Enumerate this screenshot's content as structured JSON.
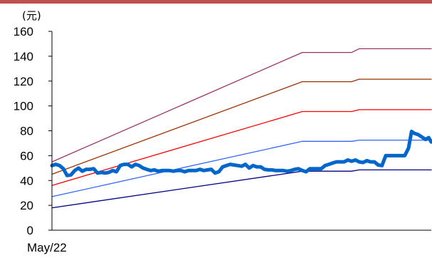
{
  "chart_data": {
    "type": "line",
    "unit_label": "(元)",
    "x_labels": [
      "May/22"
    ],
    "ylim": [
      0,
      160
    ],
    "yticks": [
      0,
      20,
      40,
      60,
      80,
      100,
      120,
      140,
      160
    ],
    "grid": false,
    "legend": "none",
    "x_range": [
      0,
      100
    ],
    "series": [
      {
        "color": "#993366",
        "width": 1.3,
        "points": [
          [
            0,
            55
          ],
          [
            66,
            143
          ],
          [
            79,
            143
          ],
          [
            81,
            146
          ],
          [
            100,
            146
          ]
        ]
      },
      {
        "color": "#993300",
        "width": 1.3,
        "points": [
          [
            0,
            45
          ],
          [
            66,
            119.5
          ],
          [
            79,
            119.5
          ],
          [
            81,
            121.5
          ],
          [
            100,
            121.5
          ]
        ]
      },
      {
        "color": "#ff0000",
        "width": 1.3,
        "points": [
          [
            0,
            36
          ],
          [
            66,
            95.5
          ],
          [
            79,
            95.5
          ],
          [
            81,
            97
          ],
          [
            100,
            97
          ]
        ]
      },
      {
        "color": "#3366ff",
        "width": 1.3,
        "points": [
          [
            0,
            27
          ],
          [
            66,
            71.5
          ],
          [
            79,
            71.5
          ],
          [
            81,
            72.5
          ],
          [
            100,
            72.5
          ]
        ]
      },
      {
        "color": "#000080",
        "width": 1.3,
        "points": [
          [
            0,
            18
          ],
          [
            66,
            47.5
          ],
          [
            79,
            47.5
          ],
          [
            81,
            48.5
          ],
          [
            100,
            48.5
          ]
        ]
      },
      {
        "color": "#0066cc",
        "width": 5,
        "points": [
          [
            0,
            52
          ],
          [
            1,
            53
          ],
          [
            2,
            52
          ],
          [
            3,
            49.5
          ],
          [
            4,
            44
          ],
          [
            5,
            44.5
          ],
          [
            6,
            48
          ],
          [
            7,
            50
          ],
          [
            8,
            47.5
          ],
          [
            9,
            49
          ],
          [
            10,
            49
          ],
          [
            11,
            49.5
          ],
          [
            12,
            46
          ],
          [
            13,
            46.5
          ],
          [
            14,
            46
          ],
          [
            15,
            46.5
          ],
          [
            16,
            48
          ],
          [
            17,
            47
          ],
          [
            18,
            52
          ],
          [
            19,
            53
          ],
          [
            20,
            53
          ],
          [
            21,
            51
          ],
          [
            22,
            53
          ],
          [
            23,
            52
          ],
          [
            24,
            50
          ],
          [
            25,
            49
          ],
          [
            26,
            48
          ],
          [
            27,
            48.5
          ],
          [
            28,
            47.5
          ],
          [
            29,
            48
          ],
          [
            30,
            48
          ],
          [
            31,
            48
          ],
          [
            32,
            47.5
          ],
          [
            33,
            48
          ],
          [
            34,
            48
          ],
          [
            35,
            47
          ],
          [
            36,
            48
          ],
          [
            37,
            48
          ],
          [
            38,
            48
          ],
          [
            39,
            49
          ],
          [
            40,
            48
          ],
          [
            41,
            48.5
          ],
          [
            42,
            49
          ],
          [
            43,
            46
          ],
          [
            44,
            47
          ],
          [
            45,
            51
          ],
          [
            46,
            52
          ],
          [
            47,
            53
          ],
          [
            48,
            52.5
          ],
          [
            49,
            52
          ],
          [
            50,
            51.5
          ],
          [
            51,
            53
          ],
          [
            52,
            50
          ],
          [
            53,
            52
          ],
          [
            54,
            51
          ],
          [
            55,
            51
          ],
          [
            56,
            49
          ],
          [
            57,
            48.5
          ],
          [
            58,
            48.5
          ],
          [
            59,
            48
          ],
          [
            60,
            48
          ],
          [
            61,
            48
          ],
          [
            62,
            47.5
          ],
          [
            63,
            48
          ],
          [
            64,
            49
          ],
          [
            65,
            49.5
          ],
          [
            66,
            48
          ],
          [
            67,
            47
          ],
          [
            68,
            49.5
          ],
          [
            69,
            49.5
          ],
          [
            70,
            49.5
          ],
          [
            71,
            49.5
          ],
          [
            72,
            52
          ],
          [
            73,
            53
          ],
          [
            74,
            54
          ],
          [
            75,
            55
          ],
          [
            76,
            55
          ],
          [
            77,
            55
          ],
          [
            78,
            56.5
          ],
          [
            79,
            55.5
          ],
          [
            80,
            56.5
          ],
          [
            81,
            55
          ],
          [
            82,
            54.5
          ],
          [
            83,
            56
          ],
          [
            84,
            55
          ],
          [
            85,
            55
          ],
          [
            86,
            52.5
          ],
          [
            87,
            52
          ],
          [
            88,
            60
          ],
          [
            89,
            60
          ],
          [
            90,
            60
          ],
          [
            91,
            60
          ],
          [
            92,
            60
          ],
          [
            93,
            60
          ],
          [
            94,
            66
          ],
          [
            94.8,
            79.5
          ],
          [
            95.5,
            78
          ],
          [
            96.5,
            77
          ],
          [
            97.5,
            75
          ],
          [
            98.5,
            73
          ],
          [
            99.3,
            74.5
          ],
          [
            100,
            71
          ]
        ]
      }
    ]
  }
}
